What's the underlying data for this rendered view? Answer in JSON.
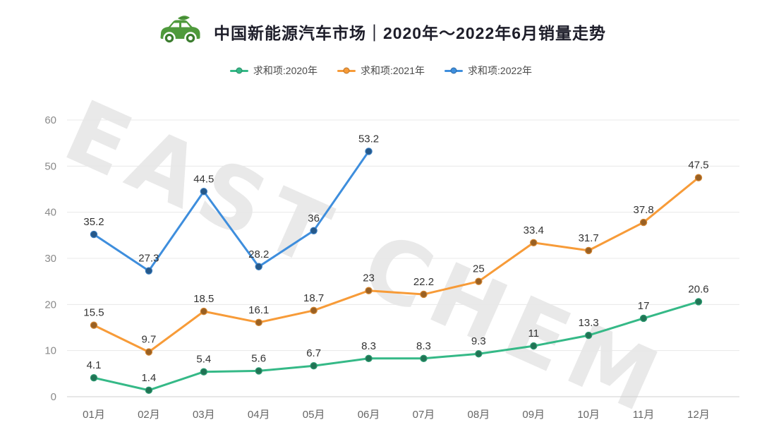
{
  "header": {
    "title": "中国新能源汽车市场｜2020年～2022年6月销量走势",
    "icon": "green-car-leaf-icon"
  },
  "chart_data": {
    "type": "line",
    "title": "中国新能源汽车市场｜2020年～2022年6月销量走势",
    "watermark": "EAST CHEM",
    "categories": [
      "01月",
      "02月",
      "03月",
      "04月",
      "05月",
      "06月",
      "07月",
      "08月",
      "09月",
      "10月",
      "11月",
      "12月"
    ],
    "series": [
      {
        "name": "求和项:2020年",
        "color": "#35b987",
        "values": [
          4.1,
          1.4,
          5.4,
          5.6,
          6.7,
          8.3,
          8.3,
          9.3,
          11,
          13.3,
          17,
          20.6
        ]
      },
      {
        "name": "求和项:2021年",
        "color": "#f79b38",
        "values": [
          15.5,
          9.7,
          18.5,
          16.1,
          18.7,
          23,
          22.2,
          25,
          33.4,
          31.7,
          37.8,
          47.5
        ]
      },
      {
        "name": "求和项:2022年",
        "color": "#3e8edd",
        "values": [
          35.2,
          27.3,
          44.5,
          28.2,
          36,
          53.2
        ]
      }
    ],
    "xlabel": "",
    "ylabel": "",
    "ylim": [
      0,
      60
    ],
    "yticks": [
      0,
      10,
      20,
      30,
      40,
      50,
      60
    ],
    "grid": true,
    "legend_position": "top"
  }
}
